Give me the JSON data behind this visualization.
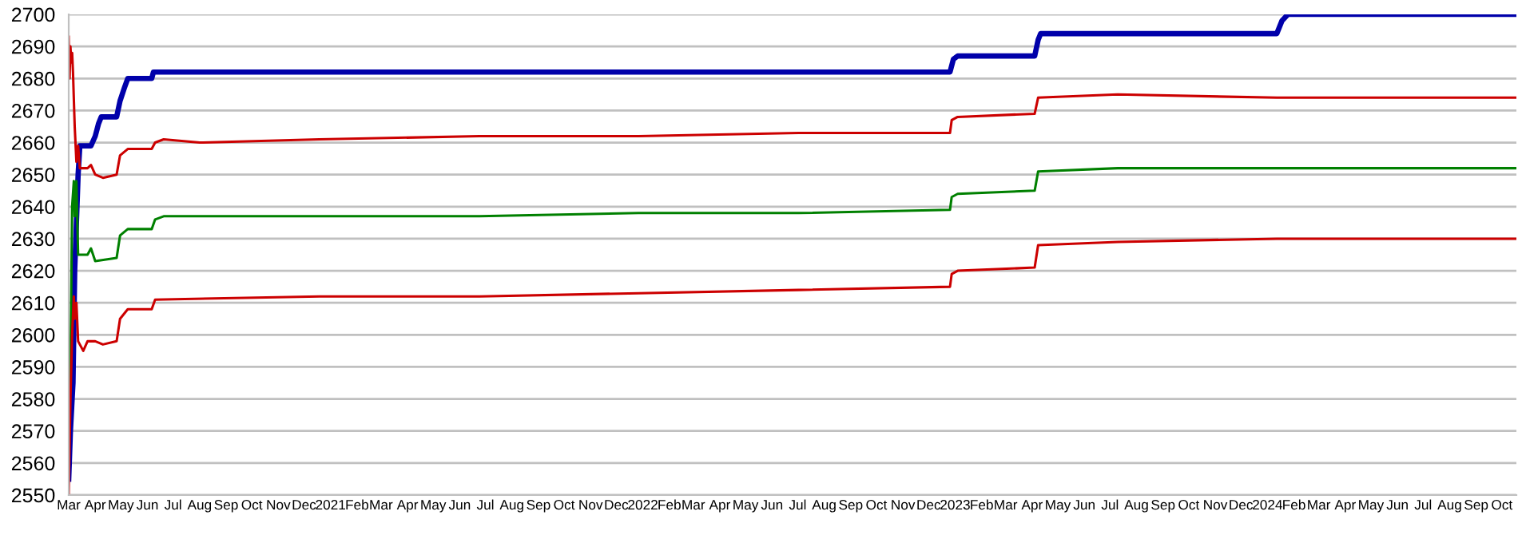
{
  "chart_data": {
    "type": "line",
    "ylim": [
      2550,
      2700
    ],
    "yticks": [
      2550,
      2560,
      2570,
      2580,
      2590,
      2600,
      2610,
      2620,
      2630,
      2640,
      2650,
      2660,
      2670,
      2680,
      2690,
      2700
    ],
    "grid": "y",
    "xlim": [
      "2020-03-01",
      "2024-10-18"
    ],
    "xticks": [
      {
        "value": "2020-03",
        "label": "Mar"
      },
      {
        "value": "2020-04",
        "label": "Apr"
      },
      {
        "value": "2020-05",
        "label": "May"
      },
      {
        "value": "2020-06",
        "label": "Jun"
      },
      {
        "value": "2020-07",
        "label": "Jul"
      },
      {
        "value": "2020-08",
        "label": "Aug"
      },
      {
        "value": "2020-09",
        "label": "Sep"
      },
      {
        "value": "2020-10",
        "label": "Oct"
      },
      {
        "value": "2020-11",
        "label": "Nov"
      },
      {
        "value": "2020-12",
        "label": "Dec"
      },
      {
        "value": "2021-01",
        "label": "2021"
      },
      {
        "value": "2021-02",
        "label": "Feb"
      },
      {
        "value": "2021-03",
        "label": "Mar"
      },
      {
        "value": "2021-04",
        "label": "Apr"
      },
      {
        "value": "2021-05",
        "label": "May"
      },
      {
        "value": "2021-06",
        "label": "Jun"
      },
      {
        "value": "2021-07",
        "label": "Jul"
      },
      {
        "value": "2021-08",
        "label": "Aug"
      },
      {
        "value": "2021-09",
        "label": "Sep"
      },
      {
        "value": "2021-10",
        "label": "Oct"
      },
      {
        "value": "2021-11",
        "label": "Nov"
      },
      {
        "value": "2021-12",
        "label": "Dec"
      },
      {
        "value": "2022-01",
        "label": "2022"
      },
      {
        "value": "2022-02",
        "label": "Feb"
      },
      {
        "value": "2022-03",
        "label": "Mar"
      },
      {
        "value": "2022-04",
        "label": "Apr"
      },
      {
        "value": "2022-05",
        "label": "May"
      },
      {
        "value": "2022-06",
        "label": "Jun"
      },
      {
        "value": "2022-07",
        "label": "Jul"
      },
      {
        "value": "2022-08",
        "label": "Aug"
      },
      {
        "value": "2022-09",
        "label": "Sep"
      },
      {
        "value": "2022-10",
        "label": "Oct"
      },
      {
        "value": "2022-11",
        "label": "Nov"
      },
      {
        "value": "2022-12",
        "label": "Dec"
      },
      {
        "value": "2023-01",
        "label": "2023"
      },
      {
        "value": "2023-02",
        "label": "Feb"
      },
      {
        "value": "2023-03",
        "label": "Mar"
      },
      {
        "value": "2023-04",
        "label": "Apr"
      },
      {
        "value": "2023-05",
        "label": "May"
      },
      {
        "value": "2023-06",
        "label": "Jun"
      },
      {
        "value": "2023-07",
        "label": "Jul"
      },
      {
        "value": "2023-08",
        "label": "Aug"
      },
      {
        "value": "2023-09",
        "label": "Sep"
      },
      {
        "value": "2023-10",
        "label": "Oct"
      },
      {
        "value": "2023-11",
        "label": "Nov"
      },
      {
        "value": "2023-12",
        "label": "Dec"
      },
      {
        "value": "2024-01",
        "label": "2024"
      },
      {
        "value": "2024-02",
        "label": "Feb"
      },
      {
        "value": "2024-03",
        "label": "Mar"
      },
      {
        "value": "2024-04",
        "label": "Apr"
      },
      {
        "value": "2024-05",
        "label": "May"
      },
      {
        "value": "2024-06",
        "label": "Jun"
      },
      {
        "value": "2024-07",
        "label": "Jul"
      },
      {
        "value": "2024-08",
        "label": "Aug"
      },
      {
        "value": "2024-09",
        "label": "Sep"
      },
      {
        "value": "2024-10",
        "label": "Oct"
      }
    ],
    "series": [
      {
        "color": "#0000aa",
        "x": [
          "2020-03-01",
          "2020-03-03",
          "2020-03-06",
          "2020-03-08",
          "2020-03-12",
          "2020-03-14",
          "2020-03-27",
          "2020-04-01",
          "2020-04-05",
          "2020-04-08",
          "2020-04-26",
          "2020-04-30",
          "2020-05-05",
          "2020-05-09",
          "2020-06-06",
          "2020-06-08",
          "2022-12-26",
          "2022-12-30",
          "2023-01-04",
          "2023-04-04",
          "2023-04-08",
          "2023-04-11",
          "2024-01-12",
          "2024-01-18",
          "2024-01-25",
          "2024-10-18"
        ],
        "values": [
          2555,
          2570,
          2585,
          2620,
          2650,
          2659,
          2659,
          2662,
          2666,
          2668,
          2668,
          2673,
          2677,
          2680,
          2680,
          2682,
          2682,
          2686,
          2687,
          2687,
          2692,
          2694,
          2694,
          2698,
          2700,
          2700
        ]
      },
      {
        "color": "#cc0000",
        "x": [
          "2020-03-01",
          "2020-03-02",
          "2020-03-03",
          "2020-03-04",
          "2020-03-05",
          "2020-03-06",
          "2020-03-08",
          "2020-03-10",
          "2020-03-12",
          "2020-03-14",
          "2020-03-23",
          "2020-03-27",
          "2020-04-01",
          "2020-04-10",
          "2020-04-26",
          "2020-04-30",
          "2020-05-09",
          "2020-06-06",
          "2020-06-10",
          "2020-06-20",
          "2020-08-01",
          "2020-12-19",
          "2021-06-24",
          "2021-12-27",
          "2022-07-02",
          "2022-12-26",
          "2022-12-28",
          "2023-01-04",
          "2023-04-04",
          "2023-04-08",
          "2023-07-10",
          "2024-01-12",
          "2024-07-17",
          "2024-10-18"
        ],
        "values": [
          2693,
          2680,
          2690,
          2685,
          2688,
          2682,
          2665,
          2654,
          2659,
          2652,
          2652,
          2653,
          2650,
          2649,
          2650,
          2656,
          2658,
          2658,
          2660,
          2661,
          2660,
          2661,
          2662,
          2662,
          2663,
          2663,
          2667,
          2668,
          2669,
          2674,
          2675,
          2674,
          2674,
          2674
        ]
      },
      {
        "color": "#008000",
        "x": [
          "2020-03-01",
          "2020-03-03",
          "2020-03-05",
          "2020-03-07",
          "2020-03-08",
          "2020-03-10",
          "2020-03-12",
          "2020-03-23",
          "2020-03-27",
          "2020-04-01",
          "2020-04-26",
          "2020-04-30",
          "2020-05-09",
          "2020-06-06",
          "2020-06-10",
          "2020-06-20",
          "2020-12-19",
          "2021-06-24",
          "2021-12-27",
          "2022-07-02",
          "2022-12-26",
          "2022-12-28",
          "2023-01-04",
          "2023-04-04",
          "2023-04-08",
          "2023-07-10",
          "2024-01-12",
          "2024-10-18"
        ],
        "values": [
          2570,
          2590,
          2640,
          2648,
          2637,
          2648,
          2625,
          2625,
          2627,
          2623,
          2624,
          2631,
          2633,
          2633,
          2636,
          2637,
          2637,
          2637,
          2638,
          2638,
          2639,
          2643,
          2644,
          2645,
          2651,
          2652,
          2652,
          2652
        ]
      },
      {
        "color": "#cc0000",
        "x": [
          "2020-03-01",
          "2020-03-02",
          "2020-03-03",
          "2020-03-05",
          "2020-03-07",
          "2020-03-08",
          "2020-03-10",
          "2020-03-12",
          "2020-03-18",
          "2020-03-23",
          "2020-04-01",
          "2020-04-10",
          "2020-04-26",
          "2020-04-30",
          "2020-05-09",
          "2020-06-06",
          "2020-06-10",
          "2020-12-19",
          "2021-06-24",
          "2021-12-27",
          "2022-07-02",
          "2022-12-26",
          "2022-12-28",
          "2023-01-04",
          "2023-04-04",
          "2023-04-08",
          "2023-07-10",
          "2024-01-12",
          "2024-07-17",
          "2024-10-18"
        ],
        "values": [
          2550,
          2565,
          2580,
          2600,
          2612,
          2605,
          2610,
          2598,
          2595,
          2598,
          2598,
          2597,
          2598,
          2605,
          2608,
          2608,
          2611,
          2612,
          2612,
          2613,
          2614,
          2615,
          2619,
          2620,
          2621,
          2628,
          2629,
          2630,
          2630,
          2630
        ]
      }
    ]
  }
}
